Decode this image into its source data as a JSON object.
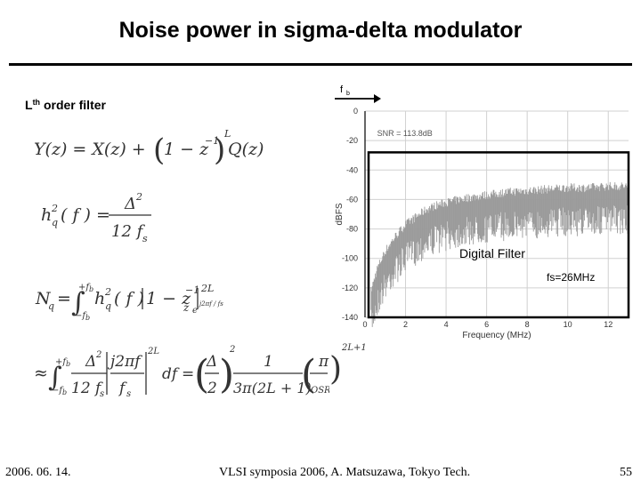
{
  "slide": {
    "title": "Noise power in sigma-delta modulator",
    "filter_label_main": "L",
    "filter_label_sup": "th",
    "filter_label_rest": " order filter",
    "footer_date": "2006. 06. 14.",
    "footer_credit": "VLSI symposia 2006,  A. Matsuzawa, Tokyo Tech.",
    "footer_page": "55"
  },
  "equations": {
    "eq1": {
      "lhs": "Y(z) = X(z) + ",
      "paren_body": "1 − z",
      "exponent": "−1",
      "power": "L",
      "rhs": "Q(z)"
    },
    "eq2": {
      "lhs": "h",
      "sub": "q",
      "sup": "2",
      "arg": "( f ) =",
      "numerator": "Δ",
      "num_sup": "2",
      "denominator": "12 f",
      "den_sub": "s"
    },
    "eq3": {
      "lhs": "N",
      "sub": "q",
      "upper": "+f",
      "upper_sub": "b",
      "lower": "−f",
      "lower_sub": "b",
      "integrand": "h",
      "int_sup": "2",
      "int_sub": "q",
      "integrand2": "( f )",
      "factor": "1 − z",
      "exp": "−1",
      "exp2": "z",
      "exp3": "e",
      "exp3_sup": "j2πf / fs",
      "power": "2L"
    },
    "eq4": {
      "approx": "≈",
      "upper": "+f",
      "upper_sub": "b",
      "lower": "−f",
      "lower_sub": "b",
      "f1_num": "Δ",
      "f1_num_sup": "2",
      "f1_den": "12 f",
      "f1_den_sub": "s",
      "f2_num": "j2πf",
      "f2_den": "f",
      "f2_den_sub": "s",
      "power1": "2L",
      "df": "df",
      "eq": "=",
      "f3_num": "Δ",
      "f3_den": "2",
      "power2": "2",
      "f4_num": "1",
      "f4_den": "3π(2L + 1)",
      "f5_num": "π",
      "f5_den": "OSR",
      "power3": "2L+1"
    }
  },
  "chart_data": {
    "type": "line",
    "title": "",
    "xlabel": "Frequency (MHz)",
    "ylabel": "dBFS",
    "xlim": [
      0,
      13
    ],
    "ylim": [
      -140,
      0
    ],
    "xticks": [
      0,
      2,
      4,
      6,
      8,
      10,
      12
    ],
    "yticks": [
      0,
      -20,
      -40,
      -60,
      -80,
      -100,
      -120,
      -140
    ],
    "grid": true,
    "annotations": {
      "snr": "SNR = 113.8dB",
      "fb_marker": "f",
      "fb_sub": "b",
      "digital_filter": "Digital Filter",
      "fs": "fs=26MHz"
    },
    "filter_box": {
      "x_start": 0,
      "x_end": 13,
      "y_top": -28,
      "y_bottom": -140
    },
    "series": [
      {
        "x": [
          0.3,
          0.6,
          1,
          1.5,
          2,
          2.5,
          3,
          3.5,
          4,
          5,
          6,
          7,
          8,
          9,
          10,
          11,
          12,
          13
        ],
        "values": [
          -125,
          -110,
          -98,
          -88,
          -80,
          -75,
          -70,
          -67,
          -65,
          -62,
          -60,
          -58,
          -57,
          -56,
          -55,
          -55,
          -54,
          -54
        ]
      }
    ],
    "colors": {
      "noise": "#9a9a9a",
      "grid": "#d0d0d0",
      "box": "#000000"
    }
  }
}
